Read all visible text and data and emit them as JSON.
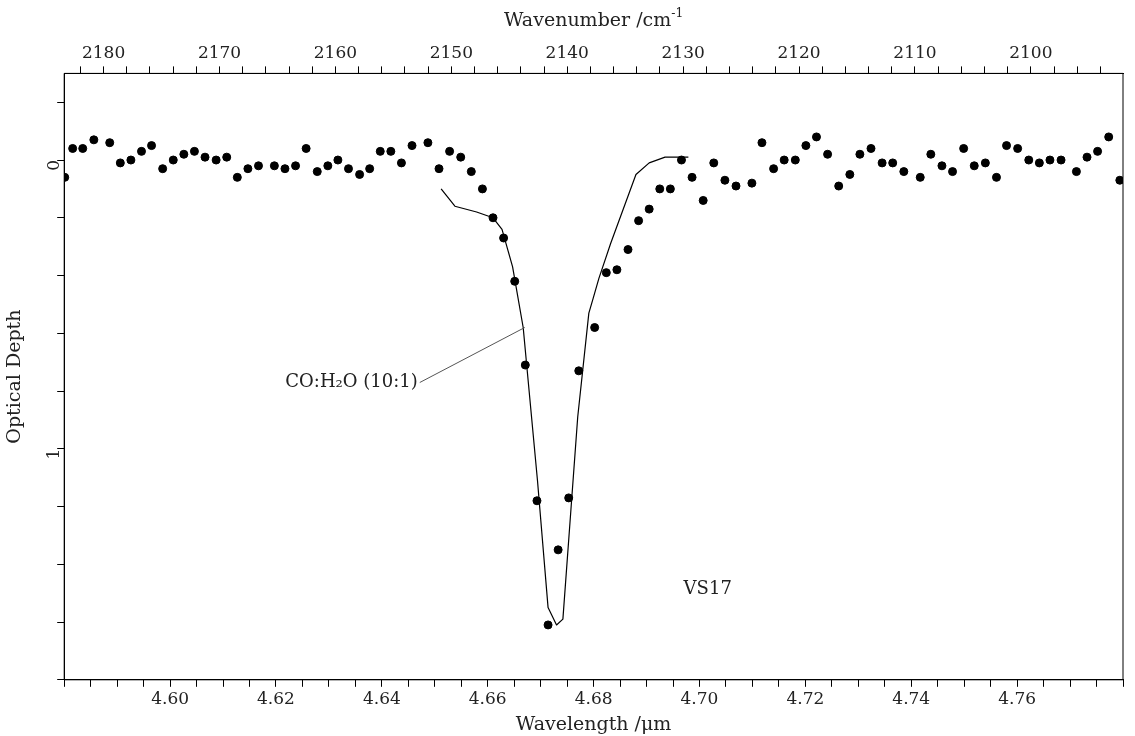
{
  "chart_data": {
    "type": "scatter",
    "xlabel": "Wavelength /μm",
    "ylabel": "Optical Depth",
    "x2label": "Wavenumber /cm$^{-1}$",
    "annotations": [
      {
        "text": "CO:H₂O (10:1)",
        "x": 4.667,
        "y": 0.58
      },
      "VS17"
    ],
    "xlim": [
      4.58,
      4.78
    ],
    "ylim": [
      1.8,
      -0.3
    ],
    "x2lim": [
      2183.4,
      2092.05
    ],
    "xticks": [
      {
        "value": 4.58,
        "label": null
      },
      {
        "value": 4.585,
        "label": null
      },
      {
        "value": 4.59,
        "label": null
      },
      {
        "value": 4.595,
        "label": null
      },
      {
        "value": 4.6,
        "label": "4.60"
      },
      {
        "value": 4.605,
        "label": null
      },
      {
        "value": 4.61,
        "label": null
      },
      {
        "value": 4.615,
        "label": null
      },
      4.62,
      {
        "value": 4.625,
        "label": null
      },
      {
        "value": 4.63,
        "label": null
      },
      {
        "value": 4.635,
        "label": null
      },
      4.64,
      {
        "value": 4.645,
        "label": null
      },
      {
        "value": 4.65,
        "label": null
      },
      {
        "value": 4.655,
        "label": null
      },
      4.66,
      {
        "value": 4.665,
        "label": null
      },
      {
        "value": 4.67,
        "label": null
      },
      {
        "value": 4.675,
        "label": null
      },
      4.68,
      {
        "value": 4.685,
        "label": null
      },
      {
        "value": 4.69,
        "label": null
      },
      {
        "value": 4.695,
        "label": null
      },
      {
        "value": 4.7,
        "label": "4.70"
      },
      {
        "value": 4.705,
        "label": null
      },
      {
        "value": 4.71,
        "label": null
      },
      {
        "value": 4.715,
        "label": null
      },
      4.72,
      {
        "value": 4.725,
        "label": null
      },
      {
        "value": 4.73,
        "label": null
      },
      {
        "value": 4.735,
        "label": null
      },
      4.74,
      {
        "value": 4.745,
        "label": null
      },
      {
        "value": 4.75,
        "label": null
      },
      {
        "value": 4.755,
        "label": null
      },
      4.76,
      {
        "value": 4.765,
        "label": null
      },
      {
        "value": 4.77,
        "label": null
      },
      {
        "value": 4.775,
        "label": null
      },
      {
        "value": 4.78,
        "label": null
      }
    ],
    "x2ticks": [
      {
        "value": 2182,
        "label": null
      },
      2180,
      {
        "value": 2178,
        "label": null
      },
      {
        "value": 2176,
        "label": null
      },
      {
        "value": 2174,
        "label": null
      },
      {
        "value": 2172,
        "label": null
      },
      2170,
      {
        "value": 2168,
        "label": null
      },
      {
        "value": 2166,
        "label": null
      },
      {
        "value": 2164,
        "label": null
      },
      {
        "value": 2162,
        "label": null
      },
      2160,
      {
        "value": 2158,
        "label": null
      },
      {
        "value": 2156,
        "label": null
      },
      {
        "value": 2154,
        "label": null
      },
      {
        "value": 2152,
        "label": null
      },
      2150,
      {
        "value": 2148,
        "label": null
      },
      {
        "value": 2146,
        "label": null
      },
      {
        "value": 2144,
        "label": null
      },
      {
        "value": 2142,
        "label": null
      },
      2140,
      {
        "value": 2138,
        "label": null
      },
      {
        "value": 2136,
        "label": null
      },
      {
        "value": 2134,
        "label": null
      },
      {
        "value": 2132,
        "label": null
      },
      2130,
      {
        "value": 2128,
        "label": null
      },
      {
        "value": 2126,
        "label": null
      },
      {
        "value": 2124,
        "label": null
      },
      {
        "value": 2122,
        "label": null
      },
      2120,
      {
        "value": 2118,
        "label": null
      },
      {
        "value": 2116,
        "label": null
      },
      {
        "value": 2114,
        "label": null
      },
      {
        "value": 2112,
        "label": null
      },
      2110,
      {
        "value": 2108,
        "label": null
      },
      {
        "value": 2106,
        "label": null
      },
      {
        "value": 2104,
        "label": null
      },
      {
        "value": 2102,
        "label": null
      },
      2100,
      {
        "value": 2098,
        "label": null
      },
      {
        "value": 2096,
        "label": null
      },
      {
        "value": 2094,
        "label": null
      }
    ],
    "yticks": [
      {
        "value": -0.2,
        "label": null
      },
      0,
      {
        "value": 0.2,
        "label": null
      },
      {
        "value": 0.4,
        "label": null
      },
      {
        "value": 0.6,
        "label": null
      },
      {
        "value": 0.8,
        "label": null
      },
      1,
      {
        "value": 1.2,
        "label": null
      },
      {
        "value": 1.4,
        "label": null
      },
      {
        "value": 1.6,
        "label": null
      },
      {
        "value": 1.8,
        "label": null
      }
    ],
    "grid": false,
    "legend": false,
    "series": [
      {
        "type": "scatter",
        "color": "#000000",
        "marker": "circle",
        "x": [
          4.5801,
          4.5816,
          4.5835,
          4.5856,
          4.5886,
          4.5906,
          4.5926,
          4.5946,
          4.5965,
          4.5986,
          4.6006,
          4.6026,
          4.6046,
          4.6066,
          4.6087,
          4.6107,
          4.6127,
          4.6147,
          4.6167,
          4.6197,
          4.6217,
          4.6237,
          4.6257,
          4.6278,
          4.6298,
          4.6317,
          4.6337,
          4.6358,
          4.6377,
          4.6397,
          4.6417,
          4.6437,
          4.6457,
          4.6487,
          4.6508,
          4.6528,
          4.6549,
          4.6569,
          4.659,
          4.661,
          4.663,
          4.6651,
          4.6671,
          4.6693,
          4.6714,
          4.6733,
          4.6753,
          4.6772,
          4.6802,
          4.6824,
          4.6844,
          4.6865,
          4.6885,
          4.6905,
          4.6925,
          4.6945,
          4.6966,
          4.6986,
          4.7007,
          4.7027,
          4.7048,
          4.7069,
          4.7099,
          4.7118,
          4.714,
          4.716,
          4.7181,
          4.7201,
          4.7221,
          4.7242,
          4.7263,
          4.7284,
          4.7303,
          4.7324,
          4.7345,
          4.7365,
          4.7386,
          4.7417,
          4.7437,
          4.7458,
          4.7478,
          4.7499,
          4.7519,
          4.754,
          4.7561,
          4.758,
          4.7601,
          4.7622,
          4.7642,
          4.7662,
          4.7683,
          4.7712,
          4.7732,
          4.7752,
          4.7773,
          4.7794
        ],
        "values": [
          0.06,
          -0.04,
          -0.04,
          -0.07,
          -0.06,
          0.01,
          0.0,
          -0.03,
          -0.05,
          0.03,
          0.0,
          -0.02,
          -0.03,
          -0.01,
          0.0,
          -0.01,
          0.06,
          0.03,
          0.02,
          0.02,
          0.03,
          0.02,
          -0.04,
          0.04,
          0.02,
          0.0,
          0.03,
          0.05,
          0.03,
          -0.03,
          -0.03,
          0.01,
          -0.05,
          -0.06,
          0.03,
          -0.03,
          -0.01,
          0.04,
          0.1,
          0.2,
          0.27,
          0.42,
          0.71,
          1.18,
          1.61,
          1.35,
          1.17,
          0.73,
          0.58,
          0.39,
          0.38,
          0.31,
          0.21,
          0.17,
          0.1,
          0.1,
          0.0,
          0.06,
          0.14,
          0.01,
          0.07,
          0.09,
          0.08,
          -0.06,
          0.03,
          0.0,
          0.0,
          -0.05,
          -0.08,
          -0.02,
          0.09,
          0.05,
          -0.02,
          -0.04,
          0.01,
          0.01,
          0.04,
          0.06,
          -0.02,
          0.02,
          0.04,
          -0.04,
          0.02,
          0.01,
          0.06,
          -0.05,
          -0.04,
          0.0,
          0.01,
          0.0,
          0.0,
          0.04,
          -0.01,
          -0.03,
          -0.08,
          0.07
        ]
      },
      {
        "type": "line",
        "color": "#000000",
        "marker": "none",
        "line_style": "solid",
        "x": [
          4.6512,
          4.6538,
          4.6579,
          4.661,
          4.6627,
          4.6647,
          4.6667,
          4.6694,
          4.6714,
          4.673,
          4.6742,
          4.677,
          4.6791,
          4.6799,
          4.681,
          4.6832,
          4.6854,
          4.688,
          4.6905,
          4.6935,
          4.6979
        ],
        "values": [
          0.1,
          0.16,
          0.18,
          0.2,
          0.24,
          0.37,
          0.58,
          1.11,
          1.55,
          1.61,
          1.59,
          0.89,
          0.53,
          0.48,
          0.41,
          0.29,
          0.18,
          0.05,
          0.01,
          -0.01,
          -0.01
        ]
      }
    ]
  }
}
